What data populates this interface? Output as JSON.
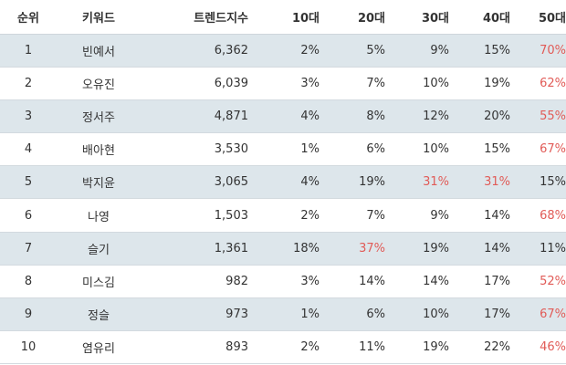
{
  "columns": {
    "rank": "순위",
    "keyword": "키워드",
    "index": "트렌드지수",
    "age10": "10대",
    "age20": "20대",
    "age30": "30대",
    "age40": "40대",
    "age50": "50대"
  },
  "highlight_color": "#e15b57",
  "row_stripe_color": "#dde6eb",
  "rows": [
    {
      "rank": "1",
      "keyword": "빈예서",
      "index": "6,362",
      "age10": "2%",
      "age20": "5%",
      "age30": "9%",
      "age40": "15%",
      "age50": "70%",
      "highlight": [
        "age50"
      ]
    },
    {
      "rank": "2",
      "keyword": "오유진",
      "index": "6,039",
      "age10": "3%",
      "age20": "7%",
      "age30": "10%",
      "age40": "19%",
      "age50": "62%",
      "highlight": [
        "age50"
      ]
    },
    {
      "rank": "3",
      "keyword": "정서주",
      "index": "4,871",
      "age10": "4%",
      "age20": "8%",
      "age30": "12%",
      "age40": "20%",
      "age50": "55%",
      "highlight": [
        "age50"
      ]
    },
    {
      "rank": "4",
      "keyword": "배아현",
      "index": "3,530",
      "age10": "1%",
      "age20": "6%",
      "age30": "10%",
      "age40": "15%",
      "age50": "67%",
      "highlight": [
        "age50"
      ]
    },
    {
      "rank": "5",
      "keyword": "박지윤",
      "index": "3,065",
      "age10": "4%",
      "age20": "19%",
      "age30": "31%",
      "age40": "31%",
      "age50": "15%",
      "highlight": [
        "age30",
        "age40"
      ]
    },
    {
      "rank": "6",
      "keyword": "나영",
      "index": "1,503",
      "age10": "2%",
      "age20": "7%",
      "age30": "9%",
      "age40": "14%",
      "age50": "68%",
      "highlight": [
        "age50"
      ]
    },
    {
      "rank": "7",
      "keyword": "슬기",
      "index": "1,361",
      "age10": "18%",
      "age20": "37%",
      "age30": "19%",
      "age40": "14%",
      "age50": "11%",
      "highlight": [
        "age20"
      ]
    },
    {
      "rank": "8",
      "keyword": "미스김",
      "index": "982",
      "age10": "3%",
      "age20": "14%",
      "age30": "14%",
      "age40": "17%",
      "age50": "52%",
      "highlight": [
        "age50"
      ]
    },
    {
      "rank": "9",
      "keyword": "정슬",
      "index": "973",
      "age10": "1%",
      "age20": "6%",
      "age30": "10%",
      "age40": "17%",
      "age50": "67%",
      "highlight": [
        "age50"
      ]
    },
    {
      "rank": "10",
      "keyword": "염유리",
      "index": "893",
      "age10": "2%",
      "age20": "11%",
      "age30": "19%",
      "age40": "22%",
      "age50": "46%",
      "highlight": [
        "age50"
      ]
    }
  ]
}
